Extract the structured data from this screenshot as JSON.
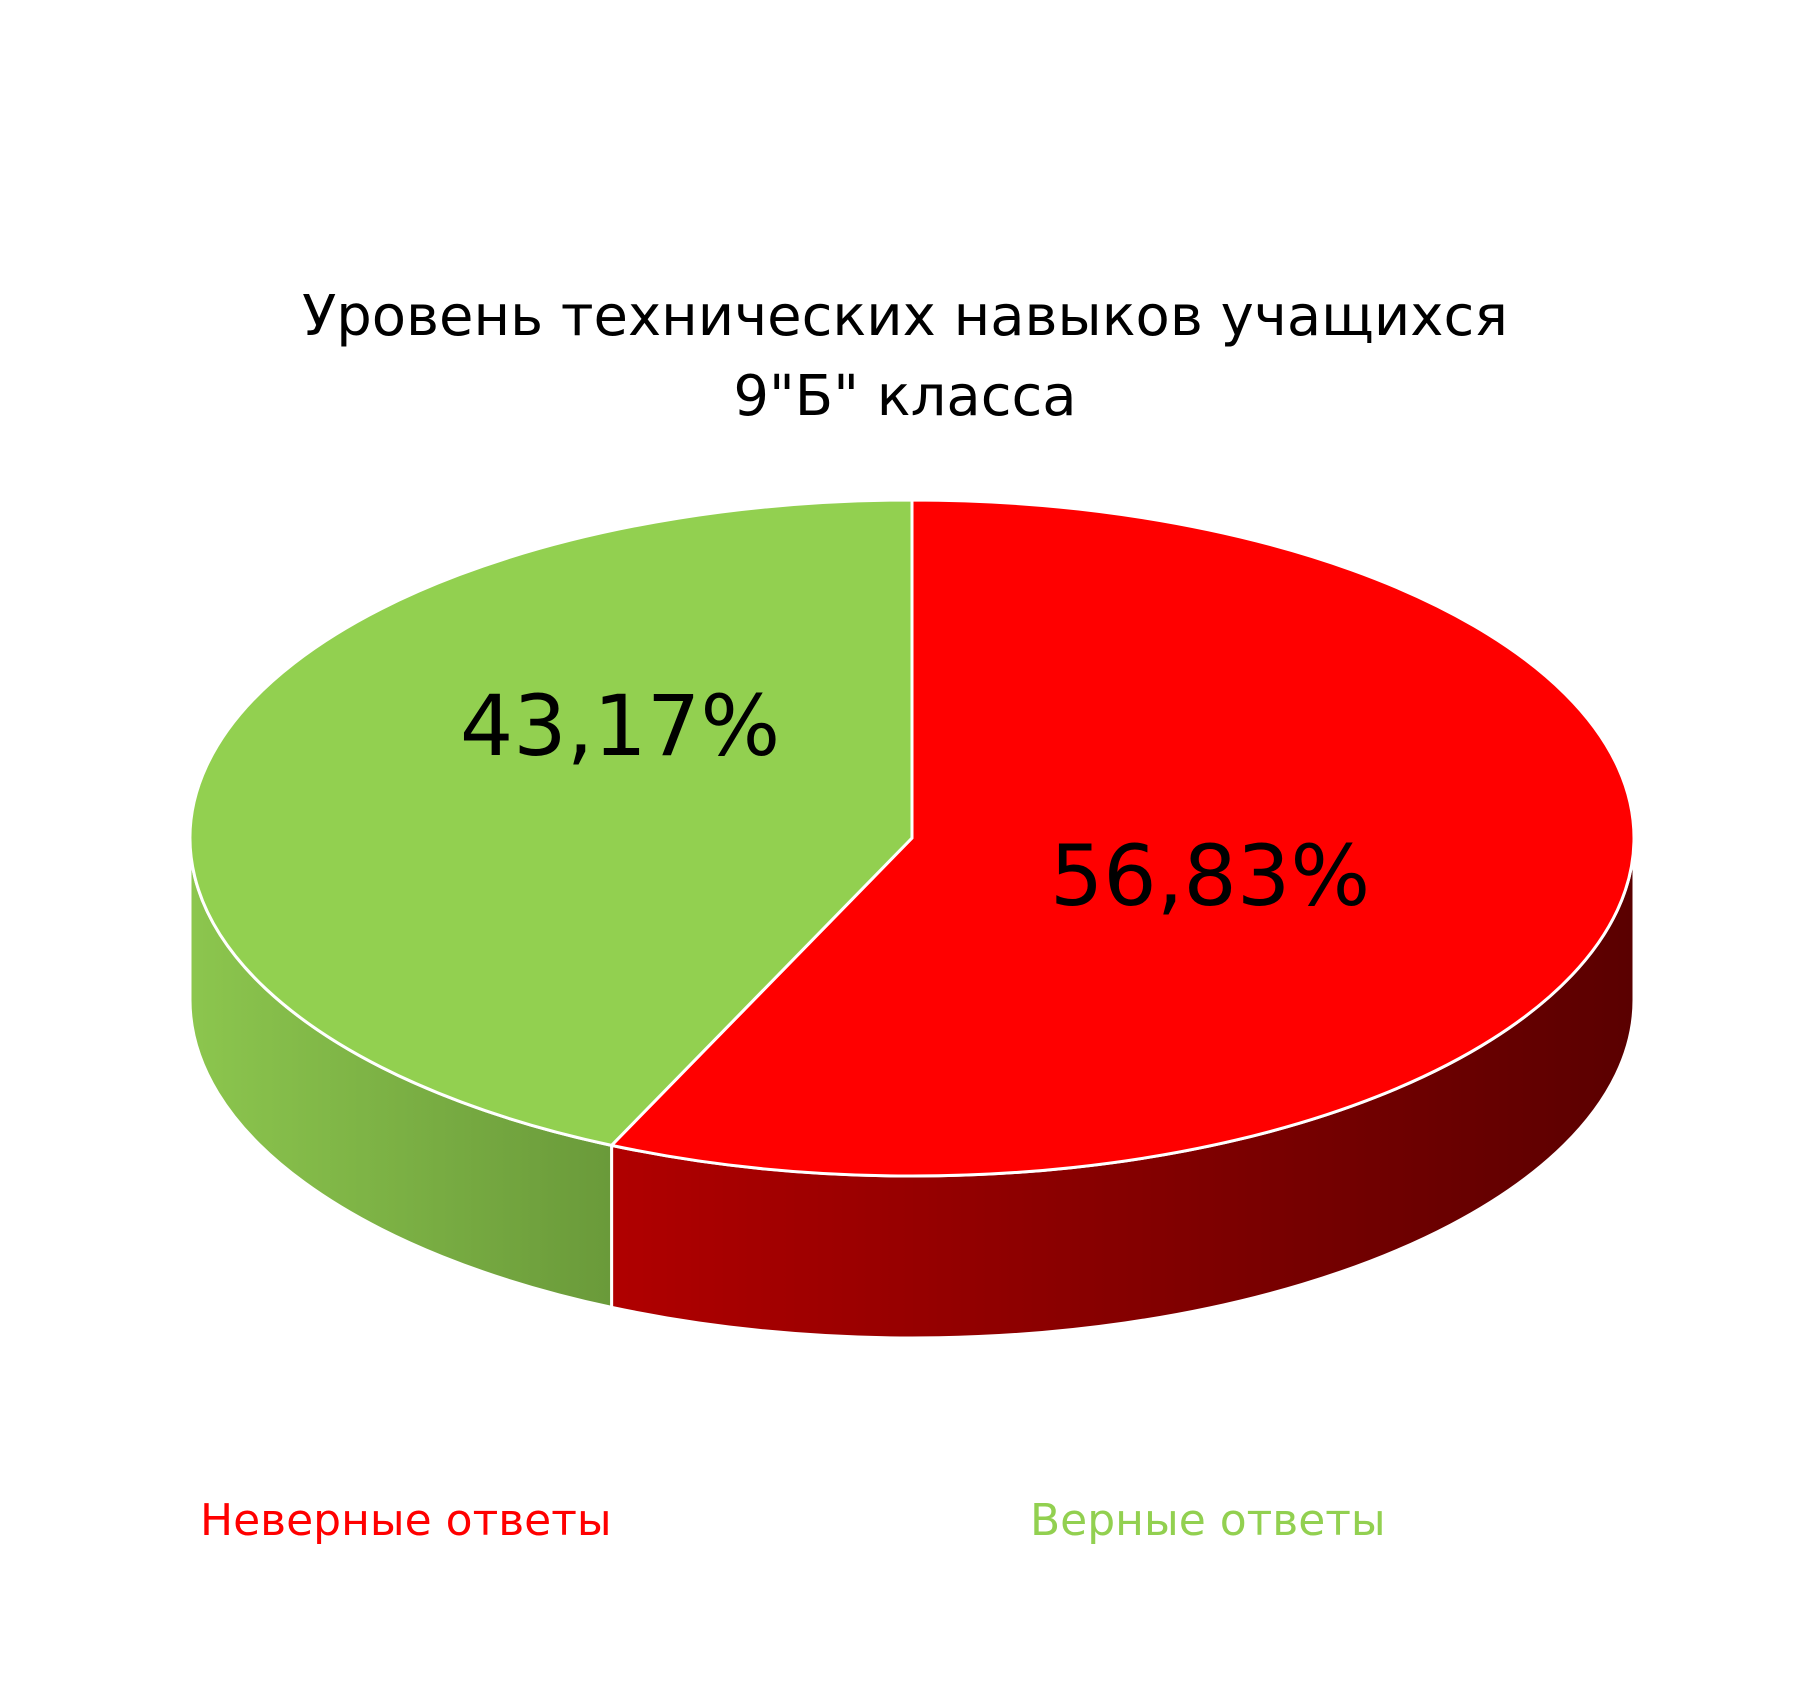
{
  "chart_data": {
    "type": "pie",
    "title": "Уровень технических навыков учащихся 9\"Б\" класса",
    "title_lines": [
      "Уровень технических навыков учащихся",
      "9\"Б\" класса"
    ],
    "three_d": true,
    "start_angle_deg": 0,
    "direction": "clockwise",
    "legend_position": "bottom",
    "slices": [
      {
        "name": "Неверные ответы",
        "value": 56.83,
        "label": "56,83%",
        "color": "#ff0000",
        "side_color_light": "#b00000",
        "side_color_dark": "#5a0000"
      },
      {
        "name": "Верные ответы",
        "value": 43.17,
        "label": "43,17%",
        "color": "#92d050",
        "side_color_light": "#8cc64e",
        "side_color_dark": "#6a9a3a"
      }
    ]
  }
}
